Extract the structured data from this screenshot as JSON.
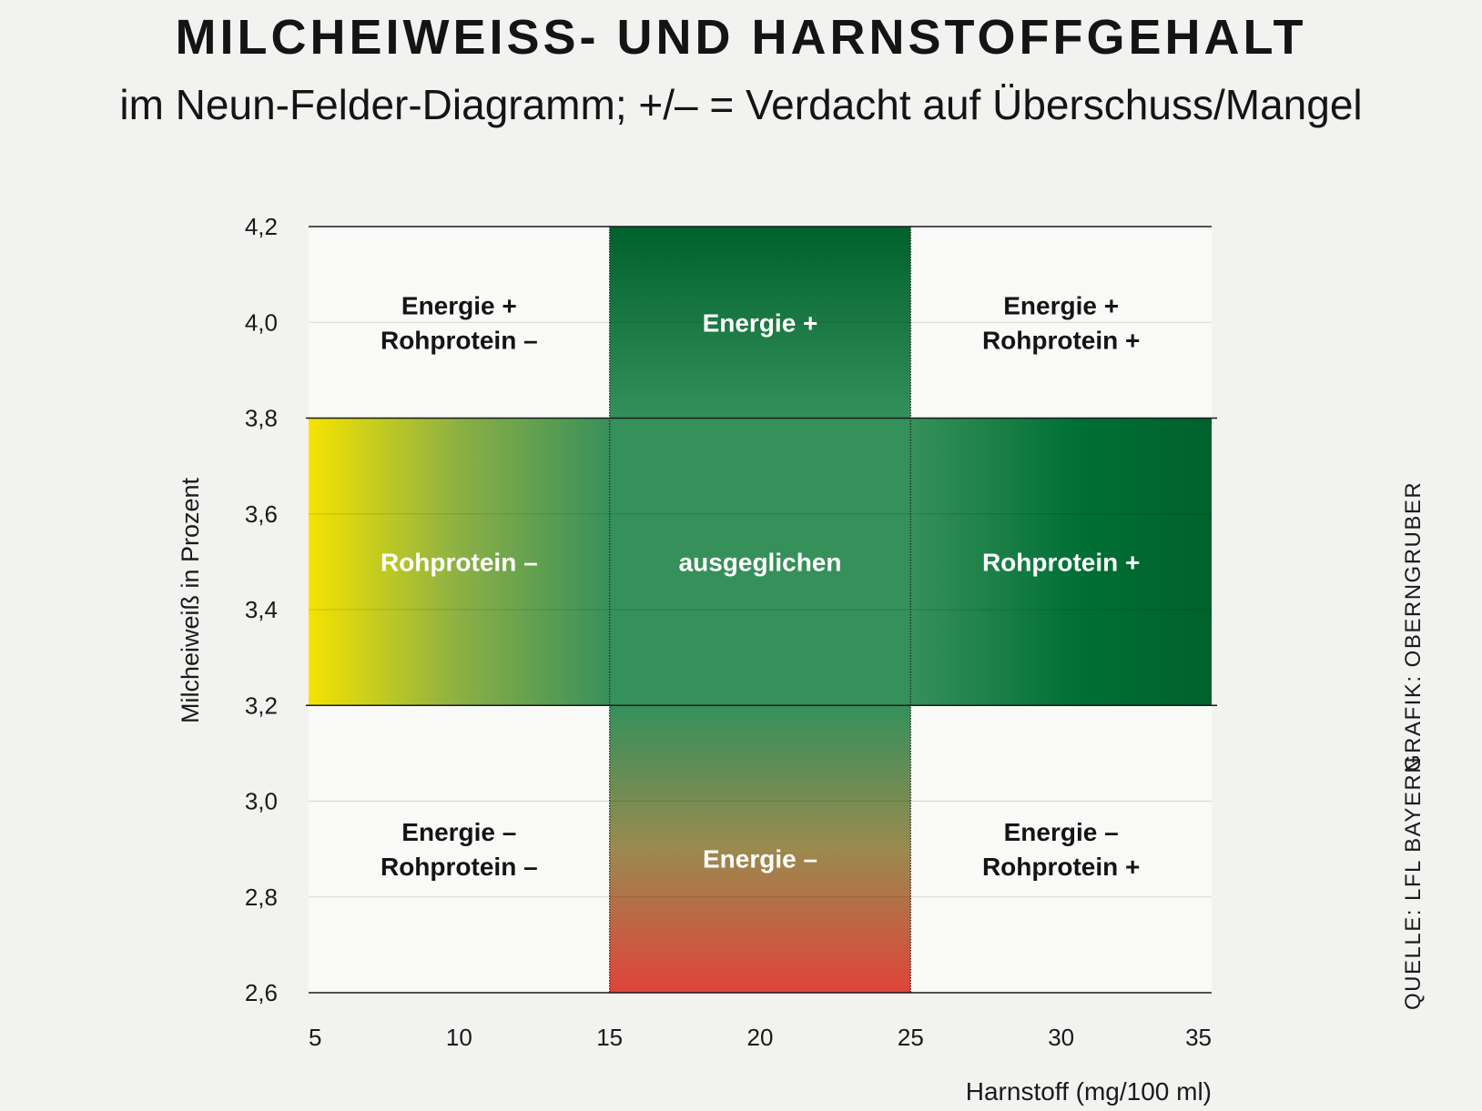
{
  "header": {
    "title": "MILCHEIWEISS- UND HARNSTOFFGEHALT",
    "subtitle": "im Neun-Felder-Diagramm; +/– = Verdacht auf Überschuss/Mangel"
  },
  "credits": {
    "source": "QUELLE: LFL BAYERN",
    "graphic": "GRAFIK: OBERNGRUBER"
  },
  "colors": {
    "background": "#f2f2f1",
    "plot_background": "#f9f9f7",
    "dark_green": "#00612c",
    "mid_green": "#36905a",
    "yellow": "#f5e300",
    "red": "#e0433a",
    "text_dark": "#141414",
    "text_light": "#ffffff"
  },
  "chart_data": {
    "type": "heatmap",
    "title": "MILCHEIWEISS- UND HARNSTOFFGEHALT",
    "subtitle": "im Neun-Felder-Diagramm; +/– = Verdacht auf Überschuss/Mangel",
    "xlabel": "Harnstoff (mg/100 ml)",
    "ylabel": "Milcheiweiß in Prozent",
    "xlim": [
      5,
      35
    ],
    "ylim": [
      2.6,
      4.2
    ],
    "x_ticks": [
      5,
      10,
      15,
      20,
      25,
      30,
      35
    ],
    "x_tick_labels": [
      "5",
      "10",
      "15",
      "20",
      "25",
      "30",
      "35"
    ],
    "y_ticks": [
      2.6,
      2.8,
      3.0,
      3.2,
      3.4,
      3.6,
      3.8,
      4.0,
      4.2
    ],
    "y_tick_labels": [
      "2,6",
      "2,8",
      "3,0",
      "3,2",
      "3,4",
      "3,6",
      "3,8",
      "4,0",
      "4,2"
    ],
    "x_boundaries": [
      15,
      25
    ],
    "y_boundaries": [
      3.2,
      3.8
    ],
    "grid": true,
    "fields": [
      {
        "id": "top-left",
        "x_range": [
          5,
          15
        ],
        "y_range": [
          3.8,
          4.2
        ],
        "label_lines": [
          "Energie +",
          "Rohprotein –"
        ],
        "label_y": 4.0,
        "fill": "plain",
        "text_color": "dark"
      },
      {
        "id": "top-center",
        "x_range": [
          15,
          25
        ],
        "y_range": [
          3.8,
          4.2
        ],
        "label_lines": [
          "Energie +"
        ],
        "label_y": 4.0,
        "fill": "gradient-top",
        "text_color": "light"
      },
      {
        "id": "top-right",
        "x_range": [
          25,
          35
        ],
        "y_range": [
          3.8,
          4.2
        ],
        "label_lines": [
          "Energie +",
          "Rohprotein +"
        ],
        "label_y": 4.0,
        "fill": "plain",
        "text_color": "dark"
      },
      {
        "id": "middle-left",
        "x_range": [
          5,
          15
        ],
        "y_range": [
          3.2,
          3.8
        ],
        "label_lines": [
          "Rohprotein –"
        ],
        "label_y": 3.5,
        "fill": "gradient-left",
        "text_color": "light"
      },
      {
        "id": "middle-center",
        "x_range": [
          15,
          25
        ],
        "y_range": [
          3.2,
          3.8
        ],
        "label_lines": [
          "ausgeglichen"
        ],
        "label_y": 3.5,
        "fill": "solid-mid",
        "text_color": "light"
      },
      {
        "id": "middle-right",
        "x_range": [
          25,
          35
        ],
        "y_range": [
          3.2,
          3.8
        ],
        "label_lines": [
          "Rohprotein +"
        ],
        "label_y": 3.5,
        "fill": "gradient-right",
        "text_color": "light"
      },
      {
        "id": "bottom-left",
        "x_range": [
          5,
          15
        ],
        "y_range": [
          2.6,
          3.2
        ],
        "label_lines": [
          "Energie –",
          "Rohprotein –"
        ],
        "label_y": 2.9,
        "fill": "plain",
        "text_color": "dark"
      },
      {
        "id": "bottom-center",
        "x_range": [
          15,
          25
        ],
        "y_range": [
          2.6,
          3.2
        ],
        "label_lines": [
          "Energie –"
        ],
        "label_y": 2.88,
        "fill": "gradient-bottom",
        "text_color": "light"
      },
      {
        "id": "bottom-right",
        "x_range": [
          25,
          35
        ],
        "y_range": [
          2.6,
          3.2
        ],
        "label_lines": [
          "Energie –",
          "Rohprotein +"
        ],
        "label_y": 2.9,
        "fill": "plain",
        "text_color": "dark"
      }
    ]
  }
}
